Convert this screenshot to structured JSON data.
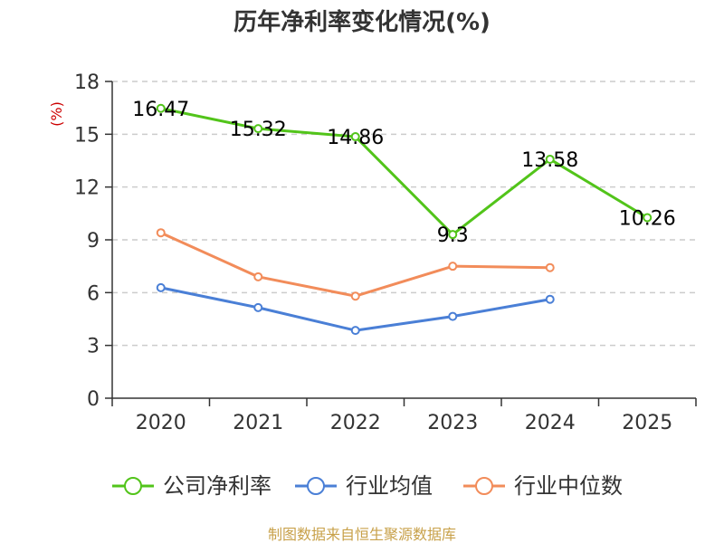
{
  "chart_data": {
    "type": "line",
    "title": "历年净利率变化情况(%)",
    "ylabel": "(%)",
    "xlabel": "",
    "categories": [
      "2020",
      "2021",
      "2022",
      "2023",
      "2024",
      "2025"
    ],
    "ylim": [
      0,
      18
    ],
    "yticks": [
      0,
      3,
      6,
      9,
      12,
      15,
      18
    ],
    "grid": true,
    "legend_position": "bottom",
    "series": [
      {
        "name": "公司净利率",
        "color": "#52c41a",
        "values": [
          16.47,
          15.32,
          14.86,
          9.3,
          13.58,
          10.26
        ],
        "labels": [
          "16.47",
          "15.32",
          "14.86",
          "9.3",
          "13.58",
          "10.26"
        ]
      },
      {
        "name": "行业均值",
        "color": "#4a7fd6",
        "values": [
          6.28,
          5.15,
          3.85,
          4.65,
          5.62,
          null
        ]
      },
      {
        "name": "行业中位数",
        "color": "#f28c5a",
        "values": [
          9.4,
          6.9,
          5.8,
          7.5,
          7.42,
          null
        ]
      }
    ]
  },
  "colors": {
    "unit": "#cc0000",
    "source": "#c8a14a",
    "grid": "#cccccc",
    "axis": "#333333"
  },
  "source_text": "制图数据来自恒生聚源数据库"
}
